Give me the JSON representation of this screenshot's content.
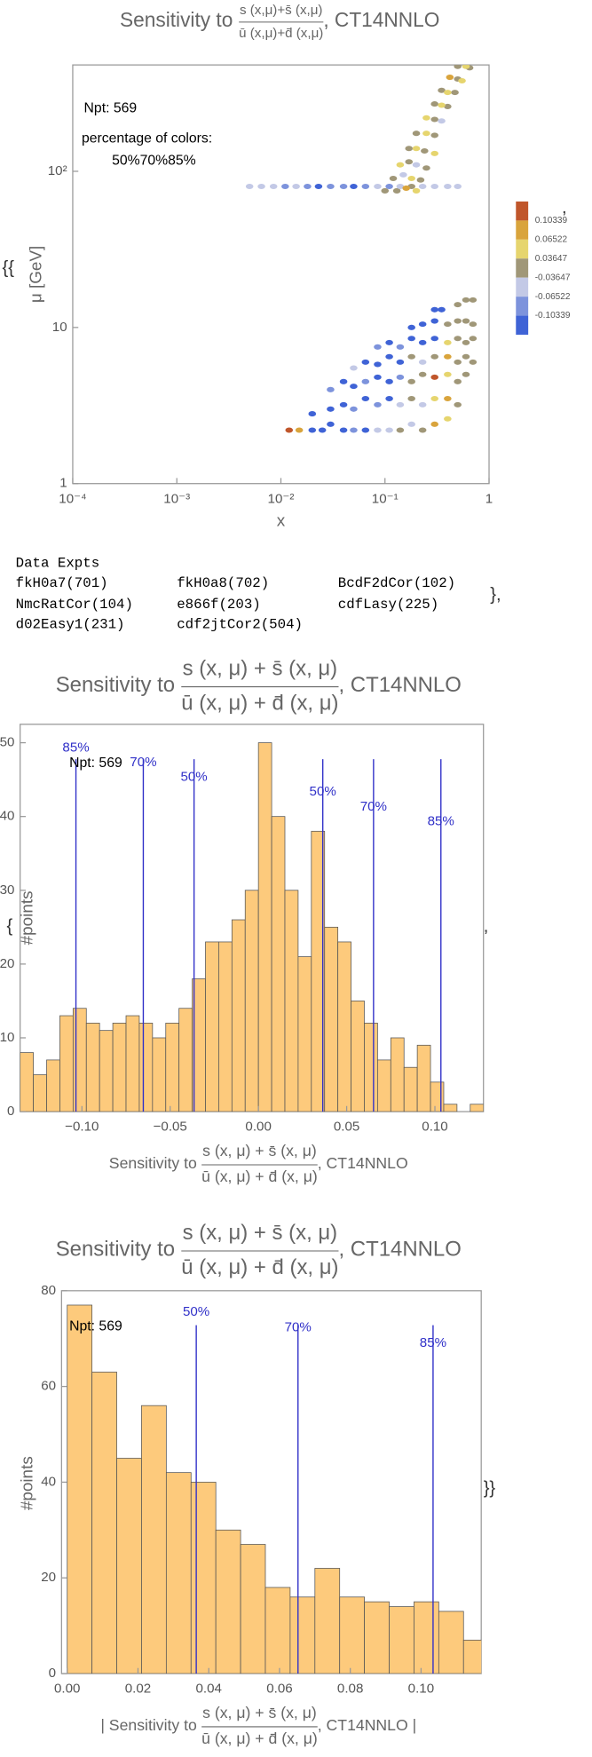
{
  "chart_data": [
    {
      "type": "scatter",
      "title": {
        "prefix": "Sensitivity to",
        "numerator": "s (x,μ)+s̄ (x,μ)",
        "denominator": "ū (x,μ)+d̄ (x,μ)",
        "suffix": ", CT14NNLO"
      },
      "xlabel": "x",
      "ylabel": "μ [GeV]",
      "xscale": "log",
      "yscale": "log",
      "xlim": [
        0.0001,
        1
      ],
      "ylim": [
        1,
        480
      ],
      "xticks": [
        {
          "value": 0.0001,
          "label": "10⁻⁴"
        },
        {
          "value": 0.001,
          "label": "10⁻³"
        },
        {
          "value": 0.01,
          "label": "10⁻²"
        },
        {
          "value": 0.1,
          "label": "10⁻¹"
        },
        1
      ],
      "yticks": [
        1,
        10,
        {
          "value": 100,
          "label": "10²"
        }
      ],
      "annotations": [
        "Npt: 569",
        "percentage of colors:",
        "50%70%85%"
      ],
      "colorbar": {
        "colors": [
          "#c0562b",
          "#d9a43c",
          "#e6d56e",
          "#a09778",
          "#c3c9e6",
          "#7d93dc",
          "#3f63d6"
        ],
        "ticks": [
          0.10339,
          0.06522,
          0.03647,
          -0.03647,
          -0.06522,
          -0.10339
        ]
      },
      "series": [
        {
          "color": "#a09778",
          "x": [
            0.18,
            0.1,
            0.13,
            0.12,
            0.22,
            0.17,
            0.25,
            0.17,
            0.24,
            0.2,
            0.3,
            0.3,
            0.3,
            0.4,
            0.35,
            0.47,
            0.5,
            0.5,
            0.65,
            0.14,
            0.23,
            0.18,
            0.5,
            0.18,
            0.23,
            0.5,
            0.6,
            0.18,
            0.3,
            0.5,
            0.6,
            0.7,
            0.5,
            0.6,
            0.7,
            0.4,
            0.5,
            0.6,
            0.7,
            0.5,
            0.6,
            0.7
          ],
          "values": [
            80,
            75,
            75,
            90,
            88,
            115,
            105,
            140,
            135,
            175,
            170,
            215,
            270,
            260,
            330,
            320,
            390,
            470,
            460,
            2.2,
            2.2,
            3.5,
            3.2,
            4.5,
            5,
            4.5,
            5,
            6.5,
            6.5,
            6,
            6.5,
            6,
            8.5,
            8,
            8.5,
            10.5,
            11,
            11,
            10.5,
            14,
            15,
            15
          ]
        },
        {
          "color": "#c3c9e6",
          "x": [
            0.005,
            0.0065,
            0.0085,
            0.014,
            0.085,
            0.14,
            0.23,
            0.3,
            0.4,
            0.5,
            0.15,
            0.2,
            0.35,
            0.085,
            0.11,
            0.18,
            0.14,
            0.23,
            0.05,
            0.23
          ],
          "values": [
            80,
            80,
            80,
            80,
            80,
            80,
            80,
            80,
            80,
            80,
            95,
            110,
            210,
            2.2,
            2.2,
            2.4,
            3.2,
            3.2,
            5.5,
            6
          ]
        },
        {
          "color": "#7d93dc",
          "x": [
            0.011,
            0.018,
            0.03,
            0.04,
            0.065,
            0.11,
            0.05,
            0.05,
            0.085,
            0.03,
            0.065,
            0.14,
            0.085,
            0.14
          ],
          "values": [
            80,
            80,
            80,
            80,
            80,
            80,
            2.2,
            3,
            3.2,
            4,
            4.5,
            4.8,
            7.5,
            7.5
          ]
        },
        {
          "color": "#3f63d6",
          "x": [
            0.023,
            0.05,
            0.02,
            0.025,
            0.03,
            0.04,
            0.065,
            0.02,
            0.03,
            0.04,
            0.065,
            0.11,
            0.04,
            0.05,
            0.085,
            0.11,
            0.065,
            0.085,
            0.11,
            0.14,
            0.11,
            0.18,
            0.23,
            0.3,
            0.18,
            0.23,
            0.3,
            0.3,
            0.35
          ],
          "values": [
            80,
            80,
            2.2,
            2.2,
            2.4,
            2.2,
            2.2,
            2.8,
            3,
            3.2,
            3.5,
            3.5,
            4.5,
            4.2,
            4.8,
            4.5,
            6,
            5.8,
            6.5,
            6,
            8,
            8.5,
            8,
            8.5,
            10,
            10.5,
            11,
            13,
            13
          ]
        },
        {
          "color": "#e6d56e",
          "x": [
            0.2,
            0.18,
            0.14,
            0.2,
            0.3,
            0.25,
            0.25,
            0.35,
            0.4,
            0.55,
            0.6,
            0.4,
            0.3,
            0.4,
            0.4
          ],
          "values": [
            75,
            90,
            110,
            140,
            130,
            175,
            220,
            265,
            320,
            380,
            470,
            2.6,
            3.5,
            5,
            8
          ]
        },
        {
          "color": "#d9a43c",
          "x": [
            0.16,
            0.42,
            0.015,
            0.3,
            0.4,
            0.4
          ],
          "values": [
            78,
            400,
            2.2,
            2.4,
            3.5,
            6.5
          ]
        },
        {
          "color": "#c0562b",
          "x": [
            0.012,
            0.3
          ],
          "values": [
            2.2,
            4.8
          ]
        }
      ]
    },
    {
      "type": "histogram",
      "title": {
        "prefix": "Sensitivity to",
        "numerator": "s (x, μ) + s̄ (x, μ)",
        "denominator": "ū (x, μ) + d̄ (x, μ)",
        "suffix": ", CT14NNLO"
      },
      "xlabel": {
        "prefix": "Sensitivity to",
        "numerator": "s (x, μ) + s̄ (x, μ)",
        "denominator": "ū (x, μ) + d̄ (x, μ)",
        "suffix": ", CT14NNLO"
      },
      "ylabel": "#points",
      "annotations": [
        "Npt: 569"
      ],
      "color": "#fdca7c",
      "vline_color": "#3030c8",
      "xlim": [
        -0.135,
        0.1275
      ],
      "ylim": [
        0,
        52.5
      ],
      "xticks": [
        {
          "value": -0.1,
          "label": "−0.10"
        },
        {
          "value": -0.05,
          "label": "−0.05"
        },
        {
          "value": 0,
          "label": "0.00"
        },
        {
          "value": 0.05,
          "label": "0.05"
        },
        {
          "value": 0.1,
          "label": "0.10"
        }
      ],
      "yticks": [
        0,
        10,
        20,
        30,
        40,
        50
      ],
      "bins": [
        -0.135,
        -0.1275,
        -0.12,
        -0.1125,
        -0.105,
        -0.0975,
        -0.09,
        -0.0825,
        -0.075,
        -0.0675,
        -0.06,
        -0.0525,
        -0.045,
        -0.0375,
        -0.03,
        -0.0225,
        -0.015,
        -0.0075,
        0,
        0.0075,
        0.015,
        0.0225,
        0.03,
        0.0375,
        0.045,
        0.0525,
        0.06,
        0.0675,
        0.075,
        0.0825,
        0.09,
        0.0975,
        0.105,
        0.1125,
        0.12,
        0.1275
      ],
      "values": [
        8,
        5,
        7,
        13,
        14,
        12,
        11,
        12,
        13,
        12,
        10,
        12,
        14,
        18,
        23,
        23,
        26,
        30,
        50,
        40,
        30,
        21,
        38,
        25,
        23,
        15,
        12,
        7,
        10,
        6,
        9,
        4,
        1,
        0,
        1
      ],
      "vlines": [
        {
          "value": -0.10339,
          "label": "85%"
        },
        {
          "value": -0.06522,
          "label": "70%"
        },
        {
          "value": -0.03647,
          "label": "50%"
        },
        {
          "value": 0.03647,
          "label": "50%"
        },
        {
          "value": 0.06522,
          "label": "70%"
        },
        {
          "value": 0.10339,
          "label": "85%"
        }
      ]
    },
    {
      "type": "histogram",
      "title": {
        "prefix": "Sensitivity to",
        "numerator": "s (x, μ) + s̄ (x, μ)",
        "denominator": "ū (x, μ) + d̄ (x, μ)",
        "suffix": ", CT14NNLO"
      },
      "xlabel": {
        "prefix": "| Sensitivity to",
        "numerator": "s (x, μ) + s̄ (x, μ)",
        "denominator": "ū (x, μ) + d̄ (x, μ)",
        "suffix": ", CT14NNLO |"
      },
      "ylabel": "#points",
      "annotations": [
        "Npt: 569"
      ],
      "color": "#fdca7c",
      "vline_color": "#3030c8",
      "xlim": [
        -0.0016,
        0.117
      ],
      "ylim": [
        0,
        80
      ],
      "xticks": [
        {
          "value": 0,
          "label": "0.00"
        },
        {
          "value": 0.02,
          "label": "0.02"
        },
        {
          "value": 0.04,
          "label": "0.04"
        },
        {
          "value": 0.06,
          "label": "0.06"
        },
        {
          "value": 0.08,
          "label": "0.08"
        },
        {
          "value": 0.1,
          "label": "0.10"
        }
      ],
      "yticks": [
        0,
        20,
        40,
        60,
        80
      ],
      "bins": [
        0,
        0.007,
        0.014,
        0.021,
        0.028,
        0.035,
        0.042,
        0.049,
        0.056,
        0.063,
        0.07,
        0.077,
        0.084,
        0.091,
        0.098,
        0.105,
        0.112,
        0.119
      ],
      "values": [
        77,
        63,
        45,
        56,
        42,
        40,
        30,
        27,
        18,
        16,
        22,
        16,
        15,
        14,
        15,
        13,
        7
      ],
      "vlines": [
        {
          "value": 0.03647,
          "label": "50%"
        },
        {
          "value": 0.06522,
          "label": "70%"
        },
        {
          "value": 0.10339,
          "label": "85%"
        }
      ]
    }
  ],
  "data_expts": {
    "title": "Data Expts",
    "entries": [
      "fkH0a7(701)",
      "fkH0a8(702)",
      "BcdF2dCor(102)",
      "NmcRatCor(104)",
      "e866f(203)",
      "cdfLasy(225)",
      "d02Easy1(231)",
      "cdf2jtCor2(504)"
    ]
  },
  "punctuation": [
    "{{",
    ",",
    "},",
    "{",
    ",",
    "}}"
  ]
}
